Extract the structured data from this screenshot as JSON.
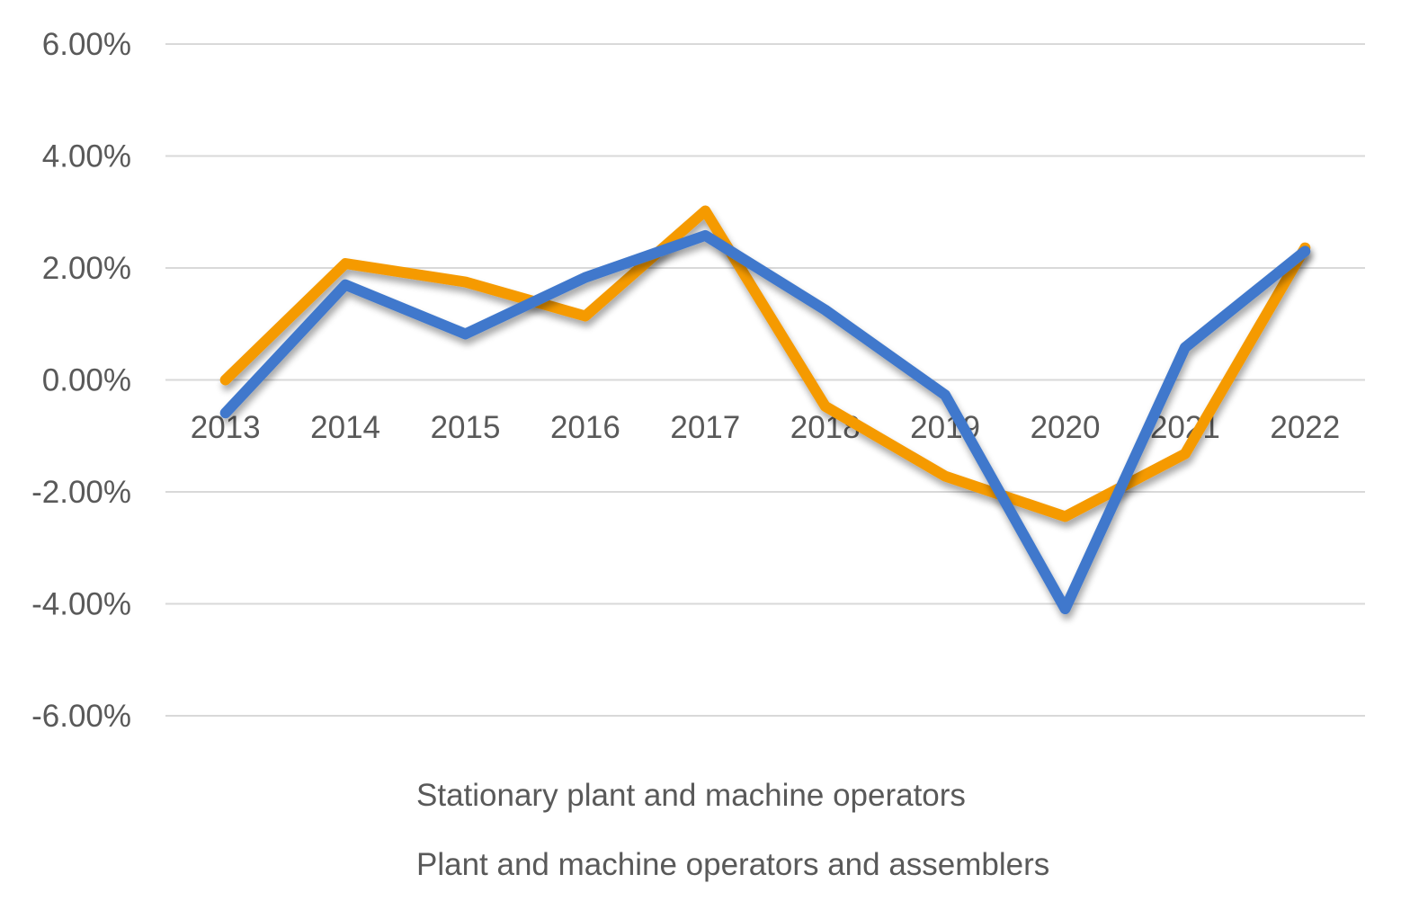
{
  "chart_data": {
    "type": "line",
    "title": "",
    "xlabel": "",
    "ylabel": "",
    "categories": [
      "2013",
      "2014",
      "2015",
      "2016",
      "2017",
      "2018",
      "2019",
      "2020",
      "2021",
      "2022"
    ],
    "ylim": [
      -6,
      6
    ],
    "yticks": [
      6,
      4,
      2,
      0,
      -2,
      -4,
      -6
    ],
    "ytick_labels": [
      "6.00%",
      "4.00%",
      "2.00%",
      "0.00%",
      "-2.00%",
      "-4.00%",
      "-6.00%"
    ],
    "grid": true,
    "legend_position": "bottom",
    "series": [
      {
        "name": "Stationary plant and machine operators",
        "color": "#f59a00",
        "values": [
          0.0,
          2.08,
          1.75,
          1.14,
          3.02,
          -0.47,
          -1.72,
          -2.44,
          -1.32,
          2.36
        ]
      },
      {
        "name": "Plant and machine operators and assemblers",
        "color": "#3f78cc",
        "values": [
          -0.59,
          1.7,
          0.82,
          1.83,
          2.58,
          1.25,
          -0.27,
          -4.09,
          0.58,
          2.3
        ]
      }
    ]
  }
}
